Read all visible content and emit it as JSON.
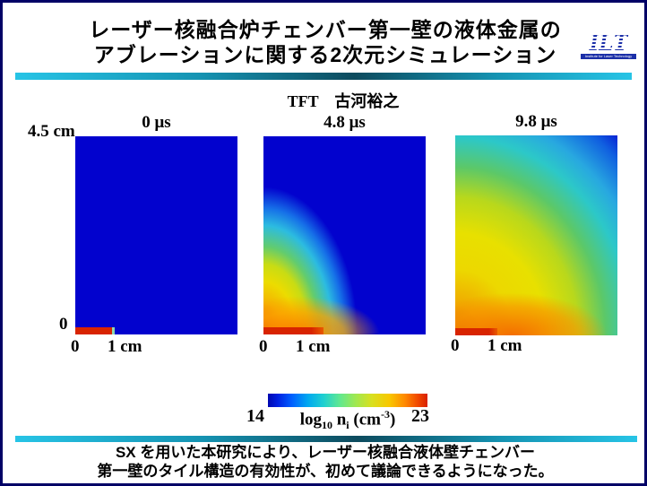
{
  "slide": {
    "title_line1": "レーザー核融合炉チェンバー第一壁の液体金属の",
    "title_line2": "アブレーションに関する2次元シミュレーション",
    "credit": "TFT　古河裕之",
    "logo_text": "ILT",
    "logo_subtext": "Institute for Laser Technology",
    "footer_line1": "SX を用いた本研究により、レーザー核融合液体壁チェンバー",
    "footer_line2": "第一壁のタイル構造の有効性が、初めて議論できるようになった。"
  },
  "colors": {
    "frame_navy": "#000066",
    "divider_cyan": "#27C4E6",
    "divider_dark_teal": "#0D4B5E",
    "density_low_blue": "#0202CE",
    "density_high_red": "#D82400"
  },
  "chart_data": {
    "type": "heatmap",
    "title": "レーザー核融合炉チェンバー第一壁の液体金属のアブレーションに関する2次元シミュレーション",
    "colormap": "jet",
    "panels": [
      {
        "time_label": "0 μs",
        "description": "Uniform low-density background (log10 ni ≈ 14, blue) with high-density liquid-metal tile layer (log10 ni ≈ 23, red) along the bottom wall from x = 0 to 1 cm."
      },
      {
        "time_label": "4.8 μs",
        "description": "Ablation plume expands from the bottom-left wall: density decreases outward from red/orange near the wall through yellow, green and cyan to the blue background; plume reaches ≈ 3.6 cm up the left edge and ≈ 2.2 cm along the bottom."
      },
      {
        "time_label": "9.8 μs",
        "description": "Plume fills most of the 3.7 × 4.5 cm domain; yellow/orange mid densities dominate lower-left, cyan at upper-left, undisturbed blue background remains only in the upper-right corner."
      }
    ],
    "x_axis": {
      "tick_zero": "0",
      "tick_one": "1 cm"
    },
    "y_axis": {
      "min_label": "0",
      "max_label": "4.5 cm"
    },
    "colorbar": {
      "min": 14,
      "max": 23,
      "min_label": "14",
      "max_label": "23",
      "label_log": "log",
      "label_log_sub": "10",
      "label_n": " n",
      "label_n_sub": "i",
      "label_unit_open": " (cm",
      "label_unit_exp": "-3",
      "label_unit_close": ")"
    }
  }
}
